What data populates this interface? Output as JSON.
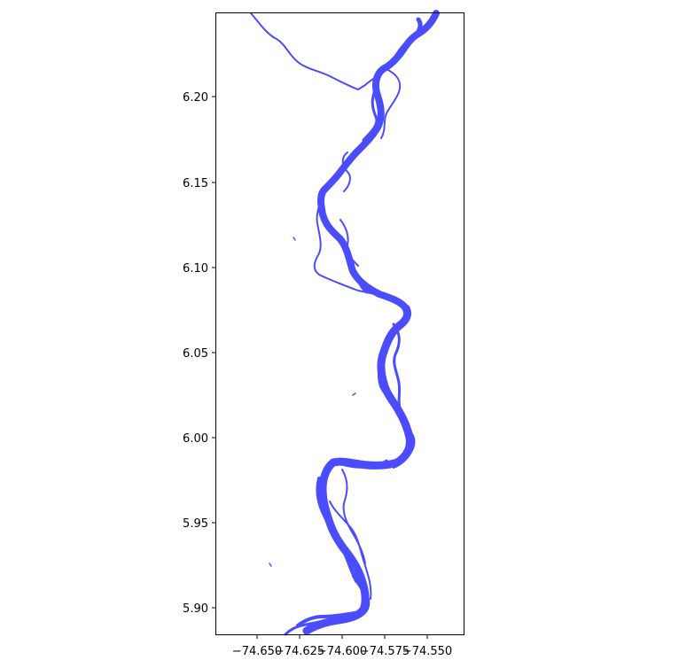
{
  "map": {
    "crs": "EPSG:4326",
    "river_color": "#4c4cff",
    "background_color": "#ffffff",
    "x_range": [
      -74.676,
      -74.534
    ],
    "y_range": [
      5.8885,
      6.2495
    ],
    "x_ticks": [
      -74.65,
      -74.625,
      -74.6,
      -74.575,
      -74.55
    ],
    "x_tick_labels": [
      "−74.650",
      "−74.625",
      "−74.600",
      "−74.575",
      "−74.550"
    ],
    "y_ticks": [
      5.9,
      5.95,
      6.0,
      6.05,
      6.1,
      6.15,
      6.2
    ],
    "y_tick_labels": [
      "5.90",
      "5.95",
      "6.00",
      "6.05",
      "6.10",
      "6.15",
      "6.20"
    ]
  }
}
